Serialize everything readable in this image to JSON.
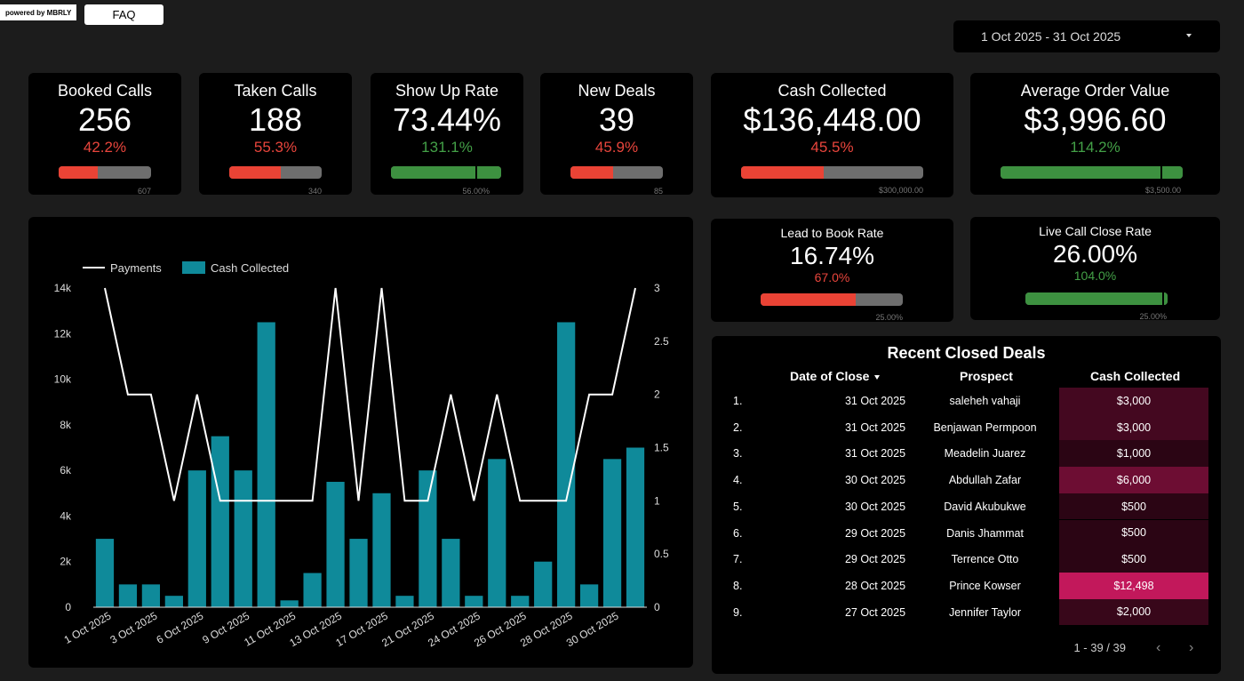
{
  "header": {
    "powered_by": "powered by MBRLY",
    "faq_label": "FAQ",
    "date_range": "1 Oct 2025 - 31 Oct 2025"
  },
  "colors": {
    "red": "#ea4335",
    "green": "#3d9140",
    "teal": "#0f8a9a",
    "table_accent": "#c2185b"
  },
  "kpis": [
    {
      "label": "Booked Calls",
      "value": "256",
      "pct": "42.2%",
      "status": "red",
      "progress": 0.422,
      "target": "607"
    },
    {
      "label": "Taken Calls",
      "value": "188",
      "pct": "55.3%",
      "status": "red",
      "progress": 0.553,
      "target": "340"
    },
    {
      "label": "Show Up Rate",
      "value": "73.44%",
      "pct": "131.1%",
      "status": "green",
      "progress": 1.0,
      "target_marker": 0.763,
      "target": "56.00%"
    },
    {
      "label": "New Deals",
      "value": "39",
      "pct": "45.9%",
      "status": "red",
      "progress": 0.459,
      "target": "85"
    },
    {
      "label": "Cash Collected",
      "value": "$136,448.00",
      "pct": "45.5%",
      "status": "red",
      "progress": 0.455,
      "target": "$300,000.00"
    },
    {
      "label": "Average Order Value",
      "value": "$3,996.60",
      "pct": "114.2%",
      "status": "green",
      "progress": 1.0,
      "target_marker": 0.876,
      "target": "$3,500.00"
    }
  ],
  "rates": [
    {
      "label": "Lead to Book Rate",
      "value": "16.74%",
      "pct": "67.0%",
      "status": "red",
      "progress": 0.67,
      "target": "25.00%"
    },
    {
      "label": "Live Call Close Rate",
      "value": "26.00%",
      "pct": "104.0%",
      "status": "green",
      "progress": 1.0,
      "target_marker": 0.962,
      "target": "25.00%"
    }
  ],
  "chart_data": {
    "type": "bar",
    "legend": [
      {
        "name": "Payments",
        "kind": "line",
        "color": "#ffffff"
      },
      {
        "name": "Cash Collected",
        "kind": "bar",
        "color": "#0f8a9a"
      }
    ],
    "legend_position": "top-left",
    "x_tick_labels": [
      "1 Oct 2025",
      "3 Oct 2025",
      "6 Oct 2025",
      "9 Oct 2025",
      "11 Oct 2025",
      "13 Oct 2025",
      "17 Oct 2025",
      "21 Oct 2025",
      "24 Oct 2025",
      "26 Oct 2025",
      "28 Oct 2025",
      "30 Oct 2025"
    ],
    "y_left_ticks": [
      "0",
      "2k",
      "4k",
      "6k",
      "8k",
      "10k",
      "12k",
      "14k"
    ],
    "y_right_ticks": [
      "0",
      "0.5",
      "1",
      "1.5",
      "2",
      "2.5",
      "3"
    ],
    "ylim_left": [
      0,
      14000
    ],
    "ylim_right": [
      0,
      3
    ],
    "series": [
      {
        "name": "Cash Collected",
        "axis": "left",
        "values": [
          3000,
          1000,
          1000,
          500,
          6000,
          7500,
          6000,
          12500,
          300,
          1500,
          5500,
          3000,
          5000,
          500,
          6000,
          3000,
          500,
          6500,
          500,
          2000,
          12500,
          1000,
          6500,
          7000
        ]
      },
      {
        "name": "Payments",
        "axis": "right",
        "values": [
          3,
          2,
          2,
          1,
          2,
          1,
          1,
          1,
          1,
          1,
          3,
          1,
          3,
          1,
          1,
          2,
          1,
          2,
          1,
          1,
          1,
          2,
          2,
          3
        ]
      }
    ]
  },
  "table": {
    "title": "Recent Closed Deals",
    "columns": [
      "Date of Close",
      "Prospect",
      "Cash Collected"
    ],
    "rows": [
      {
        "num": "1.",
        "date": "31 Oct 2025",
        "prospect": "saleheh vahaji",
        "cash": "$3,000",
        "amount": 3000
      },
      {
        "num": "2.",
        "date": "31 Oct 2025",
        "prospect": "Benjawan Permpoon",
        "cash": "$3,000",
        "amount": 3000
      },
      {
        "num": "3.",
        "date": "31 Oct 2025",
        "prospect": "Meadelin Juarez",
        "cash": "$1,000",
        "amount": 1000
      },
      {
        "num": "4.",
        "date": "30 Oct 2025",
        "prospect": "Abdullah Zafar",
        "cash": "$6,000",
        "amount": 6000
      },
      {
        "num": "5.",
        "date": "30 Oct 2025",
        "prospect": "David Akubukwe",
        "cash": "$500",
        "amount": 500
      },
      {
        "num": "6.",
        "date": "29 Oct 2025",
        "prospect": "Danis Jhammat",
        "cash": "$500",
        "amount": 500
      },
      {
        "num": "7.",
        "date": "29 Oct 2025",
        "prospect": "Terrence Otto",
        "cash": "$500",
        "amount": 500
      },
      {
        "num": "8.",
        "date": "28 Oct 2025",
        "prospect": "Prince Kowser",
        "cash": "$12,498",
        "amount": 12498
      },
      {
        "num": "9.",
        "date": "27 Oct 2025",
        "prospect": "Jennifer Taylor",
        "cash": "$2,000",
        "amount": 2000
      }
    ],
    "pagination": "1 - 39 / 39"
  }
}
